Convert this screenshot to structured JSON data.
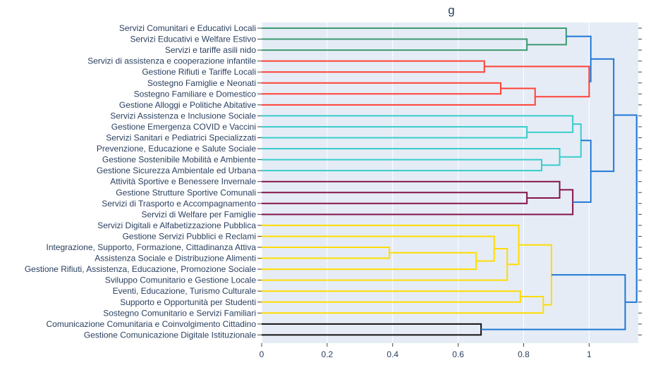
{
  "chart_data": {
    "type": "dendrogram",
    "orientation": "horizontal",
    "title_fragment": "g",
    "xlim": [
      0,
      1.15
    ],
    "x_ticks": [
      0,
      0.2,
      0.4,
      0.6,
      0.8,
      1
    ],
    "x_tick_labels": [
      "0",
      "0.2",
      "0.4",
      "0.6",
      "0.8",
      "1"
    ],
    "leaves": [
      "Servizi Comunitari e Educativi Locali",
      "Servizi Educativi e Welfare Estivo",
      "Servizi e tariffe asili nido",
      "Servizi di assistenza e cooperazione infantile",
      "Gestione Rifiuti e Tariffe Locali",
      "Sostegno Famiglie e Neonati",
      "Sostegno Familiare e Domestico",
      "Gestione Alloggi e Politiche Abitative",
      "Servizi Assistenza e Inclusione Sociale",
      "Gestione Emergenza COVID e Vaccini",
      "Servizi Sanitari e Pediatrici Specializzati",
      "Prevenzione, Educazione e Salute Sociale",
      "Gestione Sostenibile Mobilità e Ambiente",
      "Gestione Sicurezza Ambientale ed Urbana",
      "Attività Sportive e Benessere Invernale",
      "Gestione Strutture Sportive Comunali",
      "Servizi di Trasporto e Accompagnamento",
      "Servizi di Welfare per Famiglie",
      "Servizi Digitali e Alfabetizzazione Pubblica",
      "Gestione Servizi Pubblici e Reclami",
      "Integrazione, Supporto, Formazione, Cittadinanza Attiva",
      "Assistenza Sociale e Distribuzione Alimenti",
      "Gestione Rifiuti, Assistenza, Educazione, Promozione Sociale",
      "Sviluppo Comunitario e Gestione Locale",
      "Eventi, Educazione, Turismo Culturale",
      "Supporto e Opportunità per Studenti",
      "Sostegno Comunitario e Servizi Familiari",
      "Comunicazione Comunitaria e Coinvolgimento Cittadino",
      "Gestione Comunicazione Digitale Istituzionale"
    ],
    "colors": {
      "green": "#3d9970",
      "red": "#ff4136",
      "cyan": "#39cccc",
      "maroon": "#85144b",
      "yellow": "#ffdc00",
      "black": "#111111",
      "blue": "#1f77d4"
    },
    "merges": [
      {
        "id": "A1",
        "children": [
          "L1",
          "L2"
        ],
        "height": 0.81,
        "color": "green"
      },
      {
        "id": "A2",
        "children": [
          "L0",
          "A1"
        ],
        "height": 0.93,
        "color": "green"
      },
      {
        "id": "B1",
        "children": [
          "L3",
          "L4"
        ],
        "height": 0.68,
        "color": "red"
      },
      {
        "id": "B2",
        "children": [
          "L5",
          "L6"
        ],
        "height": 0.73,
        "color": "red"
      },
      {
        "id": "B3",
        "children": [
          "B2",
          "L7"
        ],
        "height": 0.835,
        "color": "red"
      },
      {
        "id": "B4",
        "children": [
          "B1",
          "B3"
        ],
        "height": 1.0,
        "color": "red"
      },
      {
        "id": "AB",
        "children": [
          "A2",
          "B4"
        ],
        "height": 1.005,
        "color": "blue"
      },
      {
        "id": "C1",
        "children": [
          "L9",
          "L10"
        ],
        "height": 0.81,
        "color": "cyan"
      },
      {
        "id": "C2",
        "children": [
          "L8",
          "C1"
        ],
        "height": 0.95,
        "color": "cyan"
      },
      {
        "id": "C3",
        "children": [
          "L12",
          "L13"
        ],
        "height": 0.855,
        "color": "cyan"
      },
      {
        "id": "C4",
        "children": [
          "L11",
          "C3"
        ],
        "height": 0.91,
        "color": "cyan"
      },
      {
        "id": "C5",
        "children": [
          "C2",
          "C4"
        ],
        "height": 0.975,
        "color": "cyan"
      },
      {
        "id": "D1",
        "children": [
          "L15",
          "L16"
        ],
        "height": 0.81,
        "color": "maroon"
      },
      {
        "id": "D2",
        "children": [
          "L14",
          "D1"
        ],
        "height": 0.91,
        "color": "maroon"
      },
      {
        "id": "D3",
        "children": [
          "D2",
          "L17"
        ],
        "height": 0.95,
        "color": "maroon"
      },
      {
        "id": "CD",
        "children": [
          "C5",
          "D3"
        ],
        "height": 1.005,
        "color": "blue"
      },
      {
        "id": "ABCD",
        "children": [
          "AB",
          "CD"
        ],
        "height": 1.075,
        "color": "blue"
      },
      {
        "id": "E1",
        "children": [
          "L20",
          "L21"
        ],
        "height": 0.39,
        "color": "yellow"
      },
      {
        "id": "E2",
        "children": [
          "E1",
          "L22"
        ],
        "height": 0.655,
        "color": "yellow"
      },
      {
        "id": "E3",
        "children": [
          "L19",
          "E2"
        ],
        "height": 0.71,
        "color": "yellow"
      },
      {
        "id": "E4",
        "children": [
          "E3",
          "L23"
        ],
        "height": 0.75,
        "color": "yellow"
      },
      {
        "id": "E5",
        "children": [
          "L18",
          "E4"
        ],
        "height": 0.785,
        "color": "yellow"
      },
      {
        "id": "E6",
        "children": [
          "L24",
          "L25"
        ],
        "height": 0.79,
        "color": "yellow"
      },
      {
        "id": "E7",
        "children": [
          "E6",
          "L26"
        ],
        "height": 0.86,
        "color": "yellow"
      },
      {
        "id": "E8",
        "children": [
          "E5",
          "E7"
        ],
        "height": 0.885,
        "color": "yellow"
      },
      {
        "id": "F1",
        "children": [
          "L27",
          "L28"
        ],
        "height": 0.67,
        "color": "black"
      },
      {
        "id": "EF",
        "children": [
          "E8",
          "F1"
        ],
        "height": 1.11,
        "color": "blue"
      },
      {
        "id": "ROOT",
        "children": [
          "ABCD",
          "EF"
        ],
        "height": 1.145,
        "color": "blue"
      }
    ],
    "grid": true,
    "legend": "none"
  }
}
